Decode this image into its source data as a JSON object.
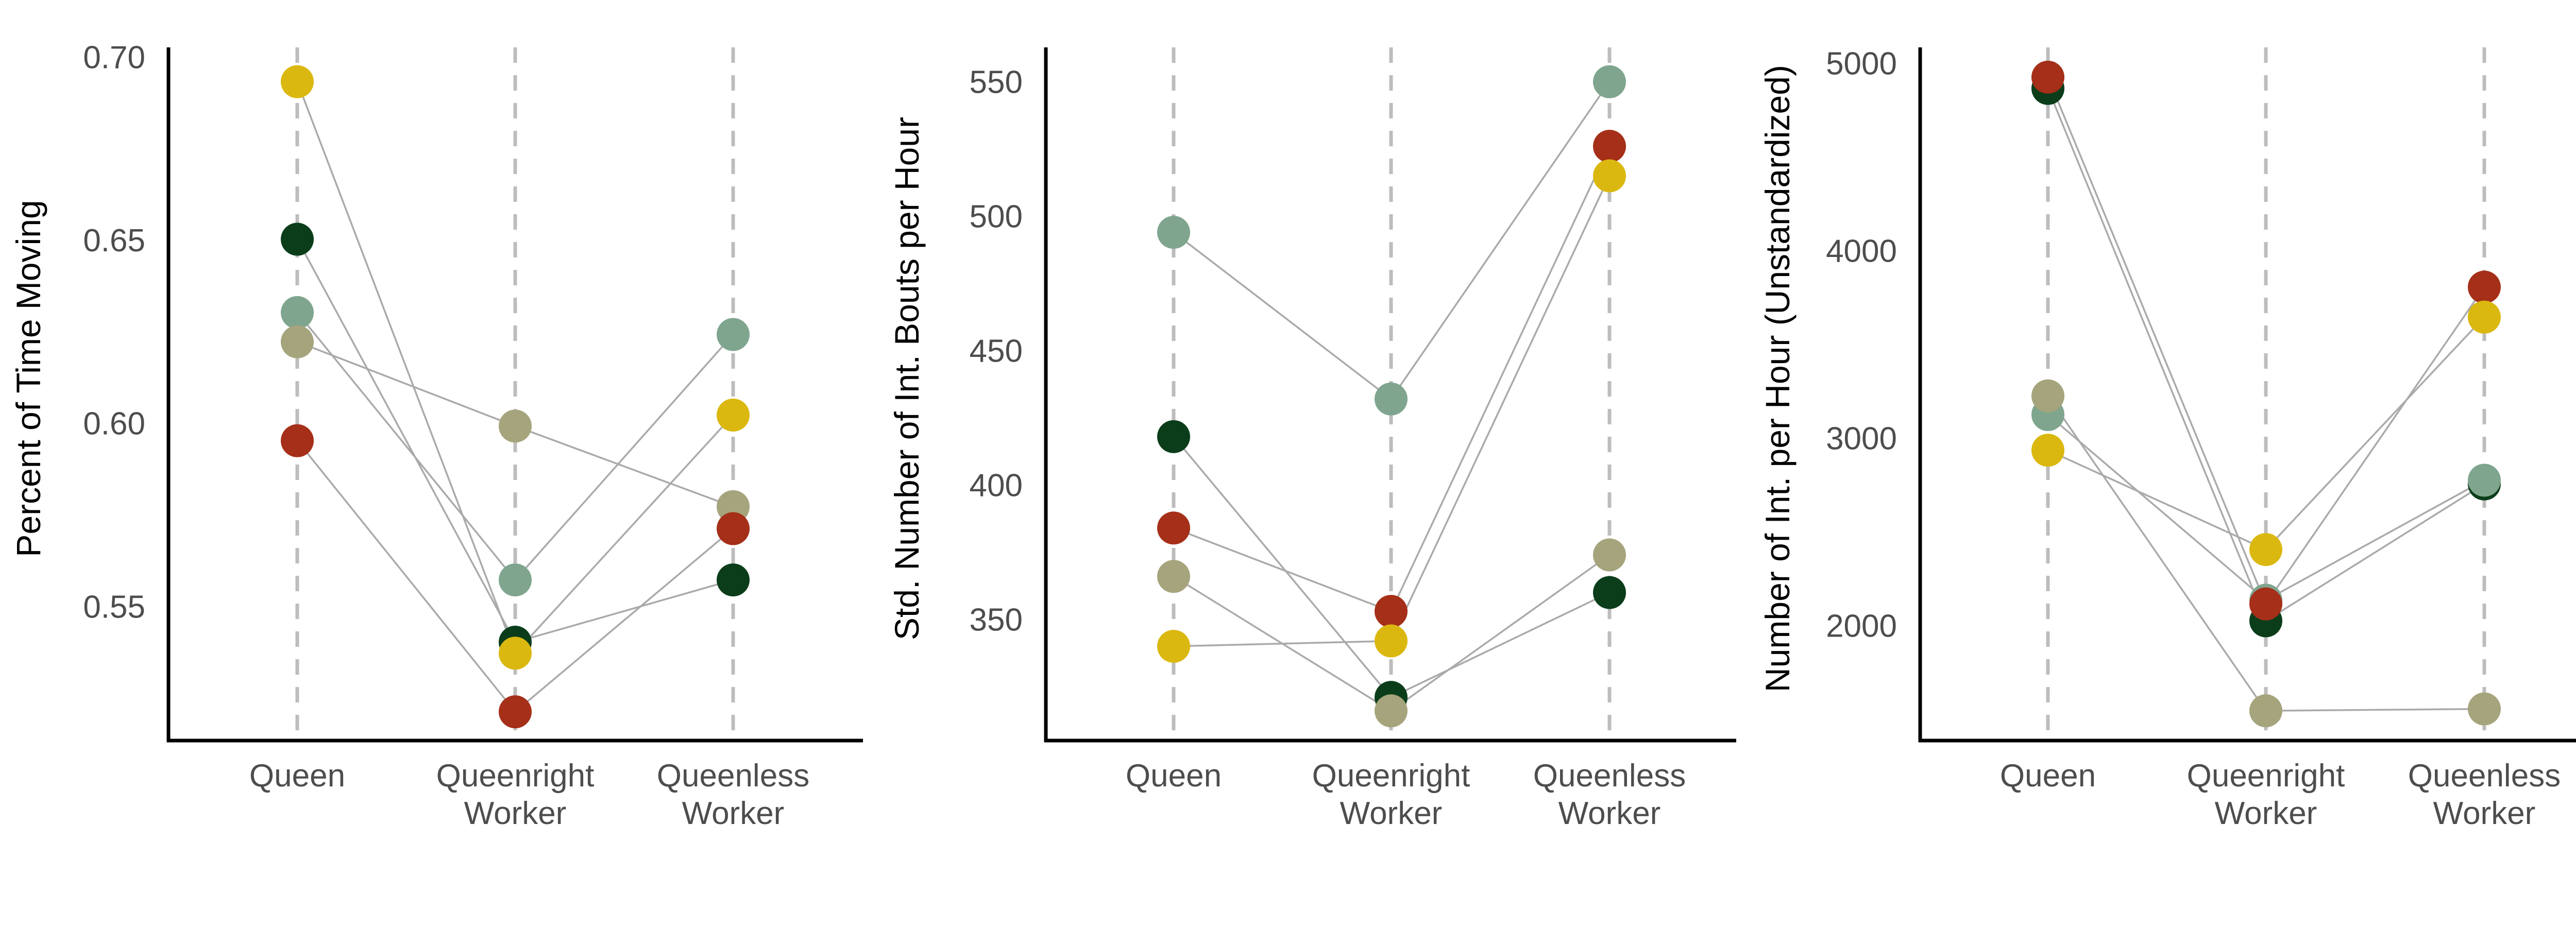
{
  "colors": {
    "colony_1": "#0b3d1a",
    "colony_2": "#7fa58e",
    "colony_3": "#a6a47c",
    "colony_4": "#a52f18",
    "colony_5": "#dbb810",
    "axis": "#000000",
    "guide": "#bdbdbd",
    "connector": "#aaaaaa",
    "tick_text": "#4d4d4d"
  },
  "chart_data": [
    {
      "type": "scatter",
      "title": "",
      "xlabel": "",
      "ylabel": "Percent of Time Moving",
      "categories": [
        "Queen",
        "Queenright Worker",
        "Queenless Worker"
      ],
      "yticks": [
        0.55,
        0.6,
        0.65,
        0.7
      ],
      "ytick_labels": [
        "0.55",
        "0.60",
        "0.65",
        "0.70"
      ],
      "ylim": [
        0.513,
        0.7
      ],
      "grid": false,
      "legend": "none",
      "series": [
        {
          "color": "#0b3d1a",
          "values": [
            0.651,
            0.541,
            0.558
          ]
        },
        {
          "color": "#7fa58e",
          "values": [
            0.631,
            0.558,
            0.625
          ]
        },
        {
          "color": "#a6a47c",
          "values": [
            0.623,
            0.6,
            0.578
          ]
        },
        {
          "color": "#a52f18",
          "values": [
            0.596,
            0.522,
            0.572
          ]
        },
        {
          "color": "#dbb810",
          "values": [
            0.694,
            0.538,
            0.603
          ]
        }
      ]
    },
    {
      "type": "scatter",
      "title": "",
      "xlabel": "",
      "ylabel": "Std. Number of Int. Bouts per Hour",
      "categories": [
        "Queen",
        "Queenright Worker",
        "Queenless Worker"
      ],
      "yticks": [
        350,
        400,
        450,
        500,
        550
      ],
      "ytick_labels": [
        "350",
        "400",
        "450",
        "500",
        "550"
      ],
      "ylim": [
        306,
        552
      ],
      "grid": false,
      "legend": "none",
      "series": [
        {
          "color": "#0b3d1a",
          "values": [
            419,
            322,
            361
          ]
        },
        {
          "color": "#7fa58e",
          "values": [
            495,
            433,
            551
          ]
        },
        {
          "color": "#a6a47c",
          "values": [
            367,
            317,
            375
          ]
        },
        {
          "color": "#a52f18",
          "values": [
            385,
            354,
            527
          ]
        },
        {
          "color": "#dbb810",
          "values": [
            341,
            343,
            516
          ]
        }
      ]
    },
    {
      "type": "scatter",
      "title": "",
      "xlabel": "",
      "ylabel": "Number of Int. per Hour (Unstandardized)",
      "categories": [
        "Queen",
        "Queenright Worker",
        "Queenless Worker"
      ],
      "yticks": [
        2000,
        3000,
        4000,
        5000
      ],
      "ytick_labels": [
        "2000",
        "3000",
        "4000",
        "5000"
      ],
      "ylim": [
        1480,
        5000
      ],
      "grid": false,
      "legend": "none",
      "series": [
        {
          "color": "#0b3d1a",
          "values": [
            4880,
            2040,
            2770
          ]
        },
        {
          "color": "#7fa58e",
          "values": [
            3140,
            2150,
            2790
          ]
        },
        {
          "color": "#a6a47c",
          "values": [
            3240,
            1560,
            1570
          ]
        },
        {
          "color": "#a52f18",
          "values": [
            4940,
            2130,
            3820
          ]
        },
        {
          "color": "#dbb810",
          "values": [
            2950,
            2420,
            3660
          ]
        }
      ]
    }
  ]
}
